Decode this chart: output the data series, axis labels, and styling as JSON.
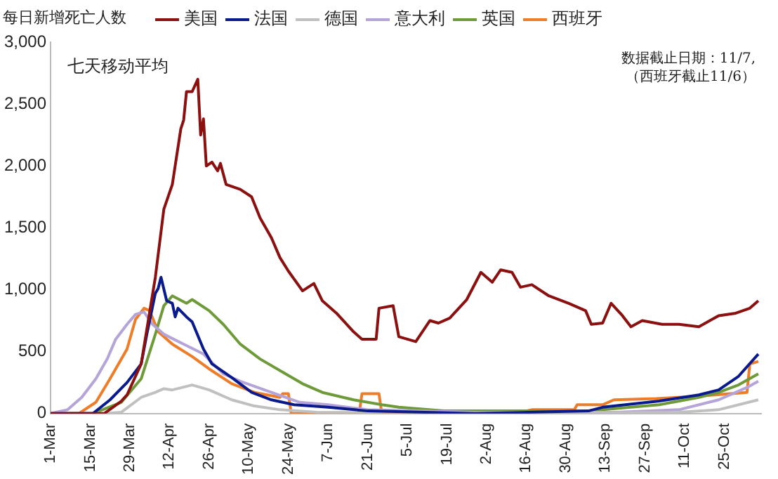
{
  "chart_data": {
    "type": "line",
    "title": "每日新增死亡人数",
    "annotations": [
      "七天移动平均",
      "数据截止日期：11/7,",
      "（西班牙截止11/6）"
    ],
    "xlim": [
      "--03-01",
      "--11-07"
    ],
    "xticks": [
      {
        "value": "--03-01",
        "label": "1-Mar"
      },
      {
        "value": "--03-15",
        "label": "15-Mar"
      },
      {
        "value": "--03-29",
        "label": "29-Mar"
      },
      {
        "value": "--04-12",
        "label": "12-Apr"
      },
      {
        "value": "--04-26",
        "label": "26-Apr"
      },
      {
        "value": "--05-10",
        "label": "10-May"
      },
      {
        "value": "--05-24",
        "label": "24-May"
      },
      {
        "value": "--06-07",
        "label": "7-Jun"
      },
      {
        "value": "--06-21",
        "label": "21-Jun"
      },
      {
        "value": "--07-05",
        "label": "5-Jul"
      },
      {
        "value": "--07-19",
        "label": "19-Jul"
      },
      {
        "value": "--08-02",
        "label": "2-Aug"
      },
      {
        "value": "--08-16",
        "label": "16-Aug"
      },
      {
        "value": "--08-30",
        "label": "30-Aug"
      },
      {
        "value": "--09-13",
        "label": "13-Sep"
      },
      {
        "value": "--09-27",
        "label": "27-Sep"
      },
      {
        "value": "--10-11",
        "label": "11-Oct"
      },
      {
        "value": "--10-25",
        "label": "25-Oct"
      }
    ],
    "ylim": [
      0,
      3000
    ],
    "yticks": [
      0,
      500,
      {
        "value": 1000,
        "label": "1,000"
      },
      {
        "value": 1500,
        "label": "1,500"
      },
      {
        "value": 2000,
        "label": "2,000"
      },
      {
        "value": 2500,
        "label": "2,500"
      },
      {
        "value": 3000,
        "label": "3,000"
      }
    ],
    "grid": false,
    "legend": "top",
    "line_style": "solid",
    "series": [
      {
        "name": "美国",
        "color": "#8b1010",
        "x": [
          "--03-01",
          "--03-20",
          "--03-26",
          "--03-28",
          "--04-02",
          "--04-07",
          "--04-10",
          "--04-13",
          "--04-16",
          "--04-17",
          "--04-18",
          "--04-20",
          "--04-22",
          "--04-23",
          "--04-24",
          "--04-25",
          "--04-27",
          "--04-29",
          "--04-30",
          "--05-02",
          "--05-07",
          "--05-11",
          "--05-14",
          "--05-18",
          "--05-21",
          "--05-24",
          "--05-29",
          "--06-02",
          "--06-05",
          "--06-10",
          "--06-16",
          "--06-19",
          "--06-24",
          "--06-25",
          "--06-30",
          "--07-02",
          "--07-08",
          "--07-13",
          "--07-16",
          "--07-20",
          "--07-26",
          "--07-31",
          "--08-04",
          "--08-07",
          "--08-11",
          "--08-14",
          "--08-18",
          "--08-24",
          "--08-31",
          "--09-06",
          "--09-08",
          "--09-12",
          "--09-15",
          "--09-19",
          "--09-22",
          "--09-26",
          "--10-03",
          "--10-09",
          "--10-16",
          "--10-23",
          "--10-29",
          "--11-03",
          "--11-06"
        ],
        "values": [
          0,
          0,
          100,
          150,
          400,
          1100,
          1650,
          1850,
          2300,
          2370,
          2600,
          2600,
          2700,
          2250,
          2380,
          2000,
          2030,
          1960,
          2020,
          1850,
          1810,
          1750,
          1580,
          1420,
          1260,
          1150,
          990,
          1050,
          910,
          810,
          660,
          600,
          600,
          850,
          870,
          620,
          580,
          750,
          730,
          770,
          920,
          1140,
          1060,
          1160,
          1140,
          1020,
          1040,
          950,
          890,
          830,
          720,
          730,
          890,
          790,
          700,
          750,
          720,
          720,
          700,
          790,
          810,
          850,
          910
        ]
      },
      {
        "name": "法国",
        "color": "#0a1a8c",
        "x": [
          "--03-01",
          "--03-16",
          "--03-22",
          "--03-28",
          "--04-02",
          "--04-04",
          "--04-07",
          "--04-08",
          "--04-09",
          "--04-11",
          "--04-13",
          "--04-14",
          "--04-15",
          "--04-18",
          "--04-20",
          "--04-24",
          "--04-27",
          "--05-04",
          "--05-11",
          "--05-18",
          "--05-26",
          "--06-07",
          "--06-21",
          "--07-29",
          "--09-07",
          "--09-12",
          "--10-02",
          "--10-16",
          "--10-23",
          "--10-30",
          "--11-06"
        ],
        "values": [
          0,
          0,
          110,
          250,
          400,
          640,
          970,
          1010,
          1100,
          910,
          890,
          780,
          850,
          780,
          740,
          520,
          400,
          290,
          170,
          110,
          70,
          50,
          20,
          0,
          20,
          50,
          100,
          150,
          190,
          300,
          480
        ]
      },
      {
        "name": "德国",
        "color": "#c0c0c0",
        "x": [
          "--03-01",
          "--03-20",
          "--03-26",
          "--04-02",
          "--04-07",
          "--04-10",
          "--04-13",
          "--04-20",
          "--04-26",
          "--05-04",
          "--05-12",
          "--05-21",
          "--06-03",
          "--08-08",
          "--10-09",
          "--10-23",
          "--11-06"
        ],
        "values": [
          0,
          0,
          10,
          130,
          170,
          200,
          190,
          230,
          190,
          110,
          60,
          30,
          10,
          0,
          10,
          30,
          110
        ]
      },
      {
        "name": "意大利",
        "color": "#b4a4d8",
        "x": [
          "--03-01",
          "--03-07",
          "--03-12",
          "--03-17",
          "--03-21",
          "--03-24",
          "--03-28",
          "--03-31",
          "--04-03",
          "--04-06",
          "--04-10",
          "--04-17",
          "--04-24",
          "--05-01",
          "--05-07",
          "--05-18",
          "--05-28",
          "--06-07",
          "--06-21",
          "--07-29",
          "--09-17",
          "--10-09",
          "--10-23",
          "--11-02",
          "--11-06"
        ],
        "values": [
          0,
          30,
          130,
          280,
          440,
          600,
          720,
          800,
          820,
          720,
          640,
          560,
          480,
          320,
          260,
          170,
          90,
          70,
          30,
          10,
          10,
          30,
          110,
          210,
          260
        ]
      },
      {
        "name": "英国",
        "color": "#6e9a3a",
        "x": [
          "--03-01",
          "--03-16",
          "--03-26",
          "--04-02",
          "--04-07",
          "--04-10",
          "--04-13",
          "--04-18",
          "--04-20",
          "--04-26",
          "--05-01",
          "--05-07",
          "--05-14",
          "--05-23",
          "--05-29",
          "--06-05",
          "--06-16",
          "--06-26",
          "--07-02",
          "--07-18",
          "--09-07",
          "--10-02",
          "--10-16",
          "--10-23",
          "--10-30",
          "--11-06"
        ],
        "values": [
          0,
          0,
          90,
          280,
          640,
          870,
          950,
          890,
          920,
          830,
          720,
          560,
          440,
          320,
          240,
          170,
          110,
          70,
          50,
          20,
          20,
          70,
          130,
          170,
          230,
          320
        ]
      },
      {
        "name": "西班牙",
        "color": "#ee7d2a",
        "x": [
          "--03-01",
          "--03-11",
          "--03-17",
          "--03-22",
          "--03-28",
          "--03-31",
          "--04-03",
          "--04-05",
          "--04-08",
          "--04-13",
          "--04-20",
          "--04-26",
          "--05-04",
          "--05-12",
          "--05-21",
          "--05-22",
          "--05-24",
          "--05-25",
          "--06-18",
          "--06-19",
          "--06-25",
          "--06-26",
          "--08-12",
          "--08-18",
          "--09-02",
          "--09-03",
          "--09-12",
          "--09-16",
          "--10-01",
          "--10-16",
          "--11-02",
          "--11-03",
          "--11-06"
        ],
        "values": [
          0,
          0,
          90,
          280,
          520,
          760,
          850,
          830,
          660,
          560,
          460,
          360,
          240,
          170,
          130,
          160,
          160,
          0,
          0,
          160,
          160,
          0,
          0,
          30,
          30,
          70,
          70,
          110,
          120,
          140,
          170,
          400,
          420
        ]
      }
    ]
  }
}
